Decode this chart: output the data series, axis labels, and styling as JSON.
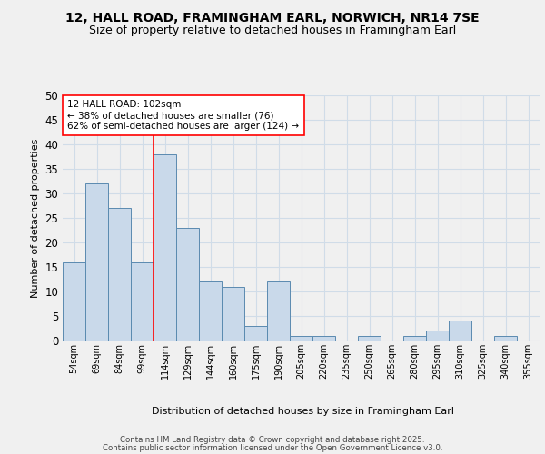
{
  "title1": "12, HALL ROAD, FRAMINGHAM EARL, NORWICH, NR14 7SE",
  "title2": "Size of property relative to detached houses in Framingham Earl",
  "xlabel": "Distribution of detached houses by size in Framingham Earl",
  "ylabel": "Number of detached properties",
  "footer1": "Contains HM Land Registry data © Crown copyright and database right 2025.",
  "footer2": "Contains public sector information licensed under the Open Government Licence v3.0.",
  "categories": [
    "54sqm",
    "69sqm",
    "84sqm",
    "99sqm",
    "114sqm",
    "129sqm",
    "144sqm",
    "160sqm",
    "175sqm",
    "190sqm",
    "205sqm",
    "220sqm",
    "235sqm",
    "250sqm",
    "265sqm",
    "280sqm",
    "295sqm",
    "310sqm",
    "325sqm",
    "340sqm",
    "355sqm"
  ],
  "values": [
    16,
    32,
    27,
    16,
    38,
    23,
    12,
    11,
    3,
    12,
    1,
    1,
    0,
    1,
    0,
    1,
    2,
    4,
    0,
    1,
    0
  ],
  "bar_color": "#c9d9ea",
  "bar_edge_color": "#5a8ab0",
  "grid_color": "#d0dce8",
  "vline_color": "red",
  "annotation_text": "12 HALL ROAD: 102sqm\n← 38% of detached houses are smaller (76)\n62% of semi-detached houses are larger (124) →",
  "annotation_box_color": "white",
  "annotation_box_edge": "red",
  "ylim": [
    0,
    50
  ],
  "yticks": [
    0,
    5,
    10,
    15,
    20,
    25,
    30,
    35,
    40,
    45,
    50
  ],
  "background_color": "#f0f0f0",
  "title_fontsize": 10,
  "subtitle_fontsize": 9
}
